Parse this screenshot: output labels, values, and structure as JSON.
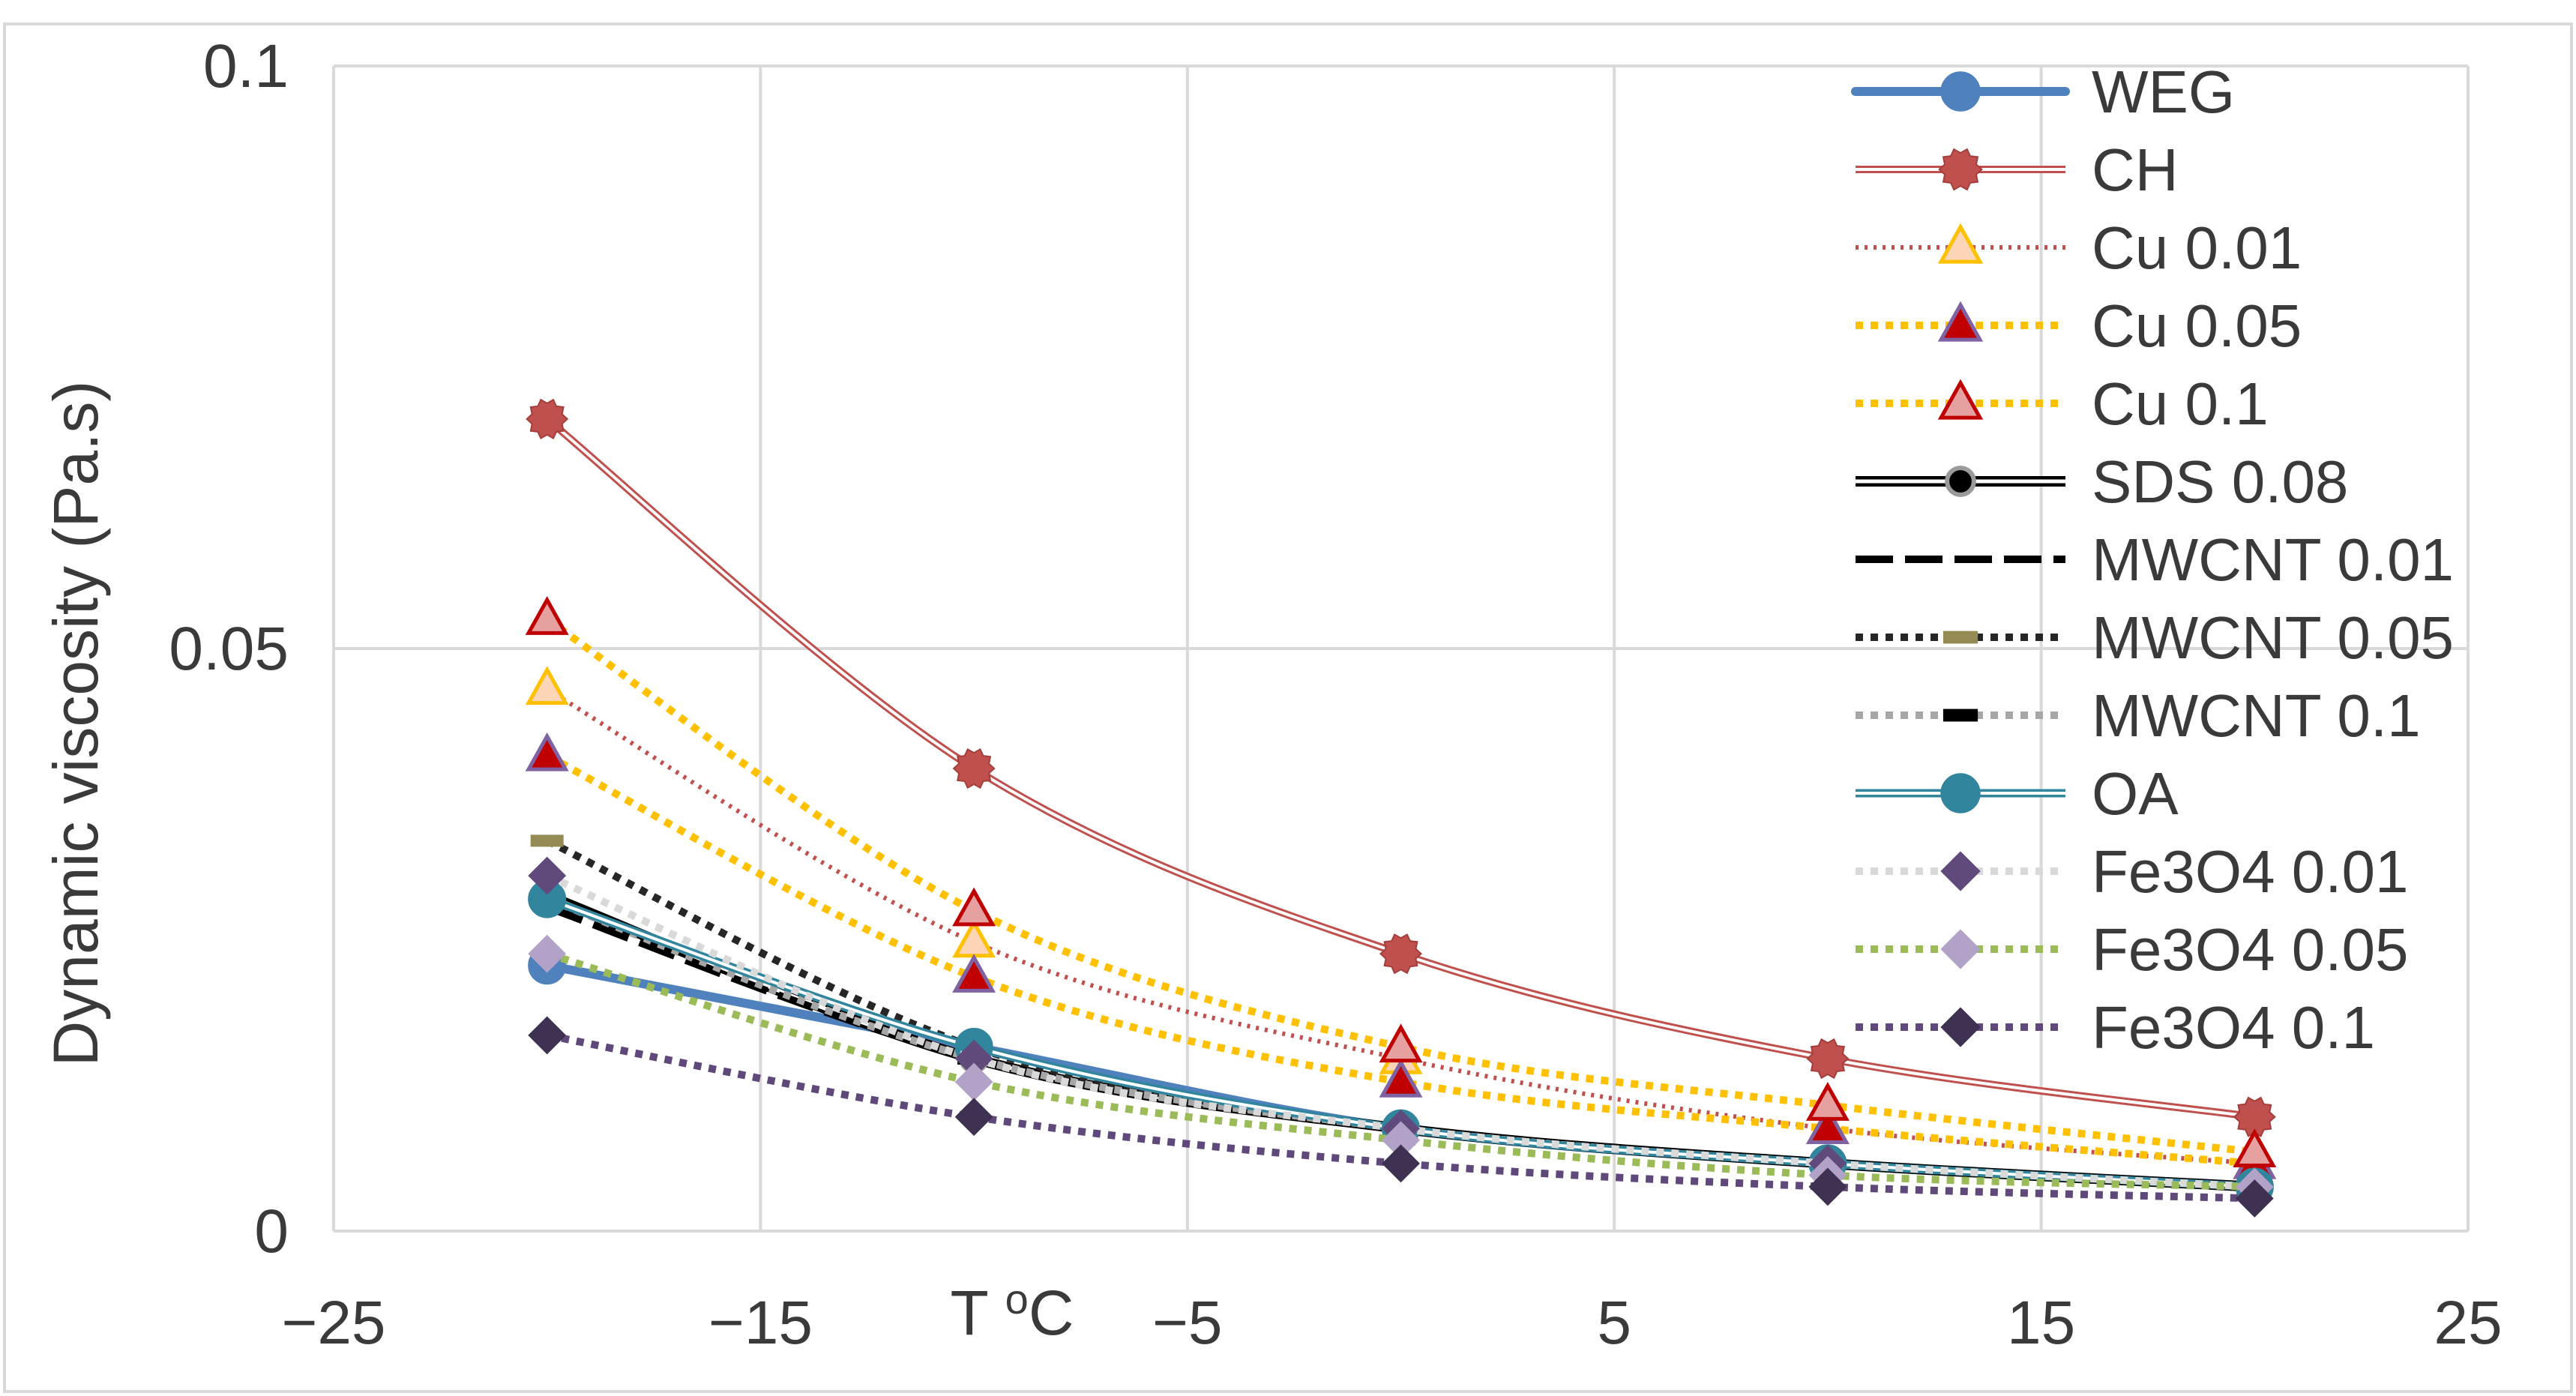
{
  "chart_data": {
    "type": "line",
    "title": "",
    "xlabel": "T oC",
    "ylabel": "Dynamic viscosity (Pa.s)",
    "xlim": [
      -25,
      25
    ],
    "ylim": [
      0,
      0.1
    ],
    "x_ticks": [
      "−25",
      "−15",
      "−5",
      "5",
      "15",
      "25"
    ],
    "x_tick_values": [
      -25,
      -15,
      -5,
      5,
      15,
      25
    ],
    "y_ticks": [
      "0",
      "0.05",
      "0.1"
    ],
    "y_tick_values": [
      0,
      0.05,
      0.1
    ],
    "grid": true,
    "legend_position": "right",
    "x": [
      -20,
      -10,
      0,
      10,
      20
    ],
    "series": [
      {
        "name": "WEG",
        "values": [
          0.0228,
          0.0158,
          0.0088,
          0.0058,
          0.0038
        ],
        "color": "#4f81bd",
        "line": "thick-solid",
        "marker": "circle"
      },
      {
        "name": "CH",
        "values": [
          0.0697,
          0.0397,
          0.0238,
          0.0148,
          0.0098
        ],
        "color": "#c0504d",
        "line": "double",
        "marker": "gear"
      },
      {
        "name": "Cu 0.01",
        "values": [
          0.0465,
          0.0248,
          0.0148,
          0.0088,
          0.0058
        ],
        "color": "#c0504d",
        "line": "dotted-thin",
        "marker": "triangle",
        "marker_fill": "#fbd5b5",
        "marker_stroke": "#ffc000"
      },
      {
        "name": "Cu 0.05",
        "values": [
          0.0408,
          0.0218,
          0.0128,
          0.0088,
          0.0058
        ],
        "color": "#ffc000",
        "line": "dotted-thick",
        "marker": "triangle",
        "marker_fill": "#c00000",
        "marker_stroke": "#7f62a2"
      },
      {
        "name": "Cu 0.1",
        "values": [
          0.0525,
          0.0275,
          0.0158,
          0.0108,
          0.0068
        ],
        "color": "#ffc000",
        "line": "dotted-thick",
        "marker": "triangle",
        "marker_fill": "#e6a0a0",
        "marker_stroke": "#c00000"
      },
      {
        "name": " SDS 0.08",
        "values": [
          0.0288,
          0.0148,
          0.0088,
          0.0058,
          0.0038
        ],
        "color": "#000000",
        "line": "double-black",
        "marker": "dot"
      },
      {
        "name": "MWCNT 0.01",
        "values": [
          0.0278,
          0.0148,
          0.0088,
          0.0058,
          0.0038
        ],
        "color": "#000000",
        "line": "dashed",
        "marker": "none"
      },
      {
        "name": "MWCNT 0.05",
        "values": [
          0.0335,
          0.0158,
          0.0088,
          0.0058,
          0.0038
        ],
        "color": "#262626",
        "line": "dotted-thick",
        "marker": "dash",
        "marker_fill": "#948a54"
      },
      {
        "name": "MWCNT  0.1",
        "values": [
          0.0285,
          0.0148,
          0.0088,
          0.0058,
          0.0038
        ],
        "color": "#a6a6a6",
        "line": "dotted-thick",
        "marker": "dash",
        "marker_fill": "#000000"
      },
      {
        "name": "OA",
        "values": [
          0.0285,
          0.0158,
          0.0088,
          0.0058,
          0.0038
        ],
        "color": "#31859c",
        "line": "double-teal",
        "marker": "circle"
      },
      {
        "name": "Fe3O4 0.01",
        "values": [
          0.0305,
          0.0148,
          0.0088,
          0.0058,
          0.0038
        ],
        "color": "#d9d9d9",
        "line": "dotted-thick",
        "marker": "diamond",
        "marker_fill": "#604a7b"
      },
      {
        "name": "Fe3O4 0.05",
        "values": [
          0.0238,
          0.0128,
          0.0078,
          0.0048,
          0.0038
        ],
        "color": "#9bbb59",
        "line": "dotted-thick",
        "marker": "diamond",
        "marker_fill": "#b3a2c7"
      },
      {
        "name": "Fe3O4 0.1",
        "values": [
          0.0168,
          0.0098,
          0.0058,
          0.0038,
          0.0028
        ],
        "color": "#5f497a",
        "line": "dotted-thick",
        "marker": "diamond",
        "marker_fill": "#3f3151"
      }
    ]
  }
}
